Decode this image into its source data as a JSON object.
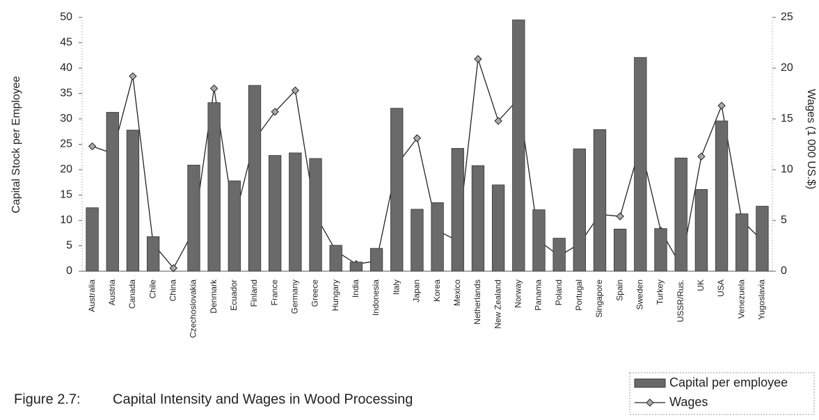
{
  "chart_data": {
    "type": "bar-line",
    "figure_label": "Figure 2.7:",
    "title": "Capital Intensity and Wages in Wood Processing",
    "ylabel": "Capital Stock per Employee",
    "y2label": "Wages (1 000 US.$)",
    "categories": [
      "Australia",
      "Austria",
      "Canada",
      "Chile",
      "China",
      "Czechoslovakia",
      "Denmark",
      "Ecuador",
      "Finland",
      "France",
      "Germany",
      "Greece",
      "Hungary",
      "India",
      "Indonesia",
      "Italy",
      "Japan",
      "Korea",
      "Mexico",
      "Netherlands",
      "New Zealand",
      "Norway",
      "Panama",
      "Poland",
      "Portugal",
      "Singapore",
      "Spain",
      "Sweden",
      "Turkey",
      "USSR/Rus.",
      "UK",
      "USA",
      "Venezuela",
      "Yugoslavia"
    ],
    "series": [
      {
        "name": "Capital per employee",
        "type": "bar",
        "axis": "y",
        "color": "#6a6a6a",
        "values": [
          12.5,
          31.3,
          27.8,
          6.8,
          0,
          20.9,
          33.2,
          17.8,
          36.6,
          22.8,
          23.3,
          22.2,
          5.1,
          1.8,
          4.5,
          32.1,
          12.2,
          13.5,
          24.2,
          20.8,
          17.0,
          49.5,
          12.1,
          6.5,
          24.1,
          27.9,
          8.3,
          42.1,
          8.4,
          22.3,
          16.1,
          29.6,
          11.3,
          12.8
        ]
      },
      {
        "name": "Wages",
        "type": "line",
        "axis": "y2",
        "color": "#222222",
        "values": [
          12.3,
          11.6,
          19.2,
          2.7,
          0.3,
          4.0,
          18.0,
          5.0,
          13.0,
          15.7,
          17.8,
          5.5,
          2.0,
          0.7,
          1.0,
          10.5,
          13.1,
          4.0,
          3.0,
          20.9,
          14.8,
          17.0,
          3.0,
          1.5,
          2.7,
          5.6,
          5.4,
          12.4,
          4.0,
          0.5,
          11.3,
          16.3,
          5.0,
          3.0
        ]
      }
    ],
    "ylim": [
      0,
      50
    ],
    "yticks": [
      0,
      5,
      10,
      15,
      20,
      25,
      30,
      35,
      40,
      45,
      50
    ],
    "y2lim": [
      0,
      25
    ],
    "y2ticks": [
      0,
      5,
      10,
      15,
      20,
      25
    ],
    "legend": "bottom-right"
  }
}
